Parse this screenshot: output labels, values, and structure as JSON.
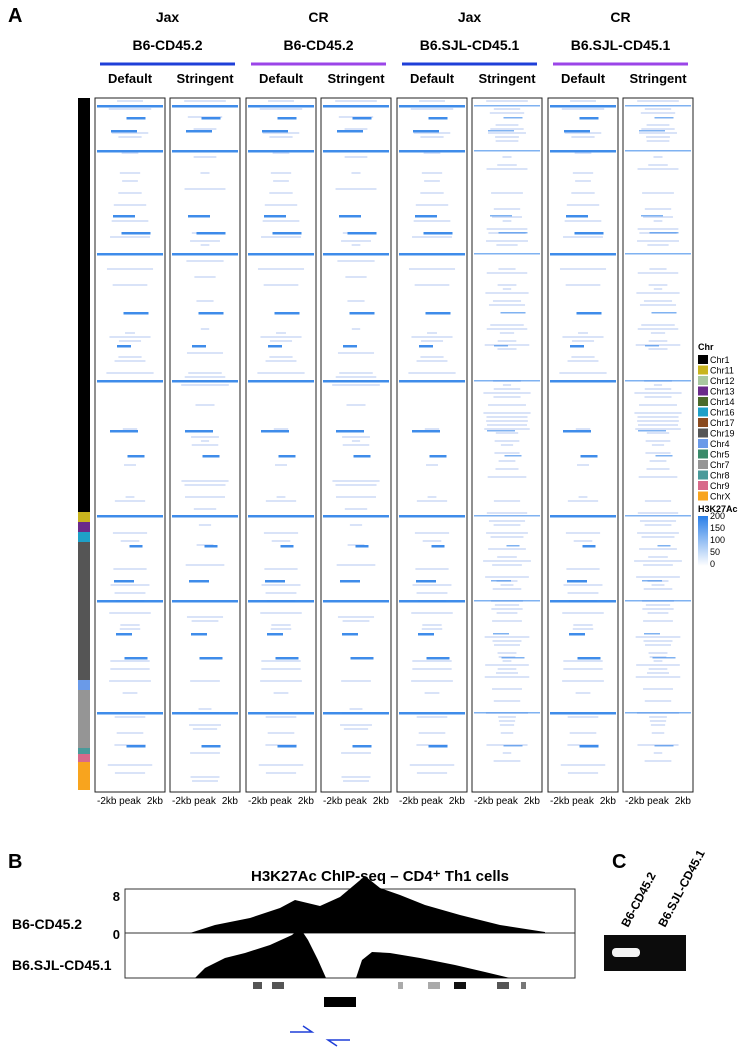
{
  "panel_a": {
    "label": "A",
    "groups": [
      {
        "vendor": "Jax",
        "strain": "B6-CD45.2",
        "color": "#1f3fd8"
      },
      {
        "vendor": "CR",
        "strain": "B6-CD45.2",
        "color": "#9b45e8"
      },
      {
        "vendor": "Jax",
        "strain": "B6.SJL-CD45.1",
        "color": "#1f3fd8"
      },
      {
        "vendor": "CR",
        "strain": "B6.SJL-CD45.1",
        "color": "#9b45e8"
      }
    ],
    "columns": [
      "Default",
      "Stringent"
    ],
    "x_axis": [
      "-2kb",
      "peak",
      "2kb"
    ],
    "chr_legend": {
      "title": "Chr",
      "items": [
        {
          "name": "Chr1",
          "color": "#000000"
        },
        {
          "name": "Chr11",
          "color": "#c8b41e"
        },
        {
          "name": "Chr12",
          "color": "#a8c8a0"
        },
        {
          "name": "Chr13",
          "color": "#6a2a8a"
        },
        {
          "name": "Chr14",
          "color": "#4a6a2a"
        },
        {
          "name": "Chr16",
          "color": "#1ea0c8"
        },
        {
          "name": "Chr17",
          "color": "#8a4a1e"
        },
        {
          "name": "Chr19",
          "color": "#555555"
        },
        {
          "name": "Chr4",
          "color": "#6a9ae8"
        },
        {
          "name": "Chr5",
          "color": "#3a8a6a"
        },
        {
          "name": "Chr7",
          "color": "#959595"
        },
        {
          "name": "Chr8",
          "color": "#4a9a9a"
        },
        {
          "name": "Chr9",
          "color": "#d86a8a"
        },
        {
          "name": "ChrX",
          "color": "#f8a41e"
        }
      ]
    },
    "signal_legend": {
      "title": "H3K27Ac",
      "ticks": [
        200,
        150,
        100,
        50,
        0
      ]
    }
  },
  "panel_b": {
    "label": "B",
    "title": "H3K27Ac ChIP-seq – CD4⁺ Th1 cells",
    "tracks": [
      "B6-CD45.2",
      "B6.SJL-CD45.1"
    ],
    "scale": [
      "8",
      "0"
    ]
  },
  "panel_c": {
    "label": "C",
    "lanes": [
      "B6-CD45.2",
      "B6.SJL-CD45.1"
    ]
  }
}
